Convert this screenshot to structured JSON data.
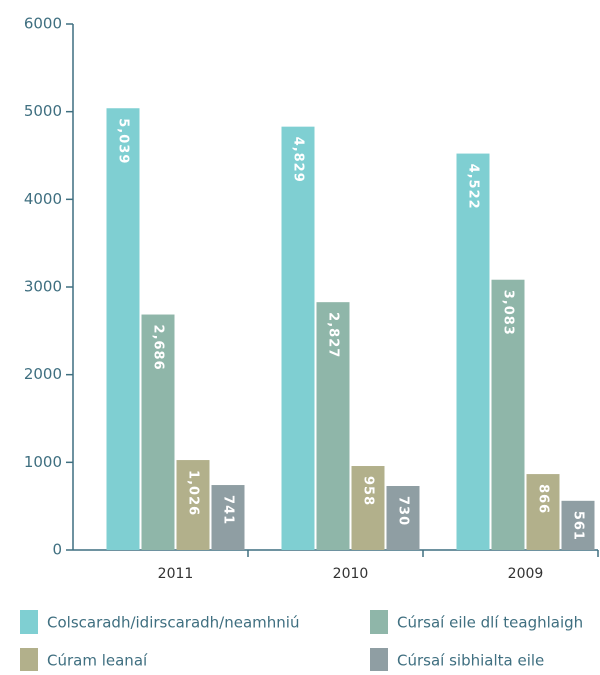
{
  "chart_data": {
    "type": "bar",
    "categories": [
      "2011",
      "2010",
      "2009"
    ],
    "series": [
      {
        "name": "Colscaradh/idirscaradh/neamhniú",
        "color": "#7fcfd2",
        "values": [
          5039,
          4829,
          4522
        ],
        "value_labels": [
          "5,039",
          "4,829",
          "4,522"
        ]
      },
      {
        "name": "Cúrsaí eile dlí teaghlaigh",
        "color": "#8fb6a9",
        "values": [
          2686,
          2827,
          3083
        ],
        "value_labels": [
          "2,686",
          "2,827",
          "3,083"
        ]
      },
      {
        "name": "Cúram leanaí",
        "color": "#b2b08b",
        "values": [
          1026,
          958,
          866
        ],
        "value_labels": [
          "1,026",
          "958",
          "866"
        ]
      },
      {
        "name": "Cúrsaí sibhialta eile",
        "color": "#8f9ea3",
        "values": [
          741,
          730,
          561
        ],
        "value_labels": [
          "741",
          "730",
          "561"
        ]
      }
    ],
    "ylim": [
      0,
      6000
    ],
    "yticks": [
      0,
      1000,
      2000,
      3000,
      4000,
      5000,
      6000
    ]
  }
}
